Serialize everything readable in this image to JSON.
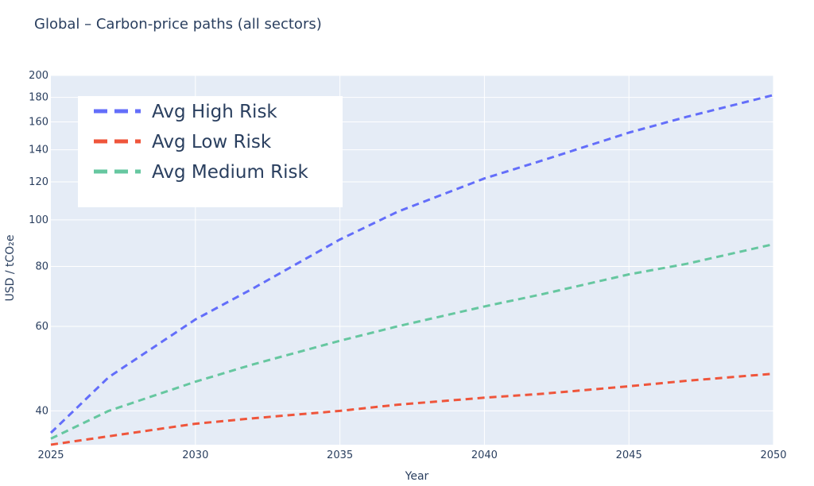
{
  "chart_data": {
    "type": "line",
    "title": "Global – Carbon-price paths (all sectors)",
    "xlabel": "Year",
    "ylabel": "USD / tCO₂e",
    "y_scale": "log",
    "xlim": [
      2025,
      2050
    ],
    "ylim": [
      34,
      200
    ],
    "x_ticks": [
      2025,
      2030,
      2035,
      2040,
      2045,
      2050
    ],
    "y_ticks": [
      40,
      60,
      80,
      100,
      120,
      140,
      160,
      180,
      200
    ],
    "grid": true,
    "legend_position": "top-left",
    "series": [
      {
        "name": "Avg High Risk",
        "color": "#636efa",
        "dash": "dashed",
        "x": [
          2025,
          2027,
          2030,
          2032,
          2035,
          2037,
          2040,
          2042,
          2045,
          2047,
          2050
        ],
        "y": [
          36,
          47,
          62,
          72,
          91,
          104,
          122,
          133,
          152,
          164,
          182
        ]
      },
      {
        "name": "Avg Low Risk",
        "color": "#ef553b",
        "dash": "dashed",
        "x": [
          2025,
          2027,
          2030,
          2032,
          2035,
          2037,
          2040,
          2042,
          2045,
          2047,
          2050
        ],
        "y": [
          34,
          35.4,
          37.6,
          38.6,
          40,
          41.2,
          42.6,
          43.4,
          45,
          46.2,
          47.8
        ]
      },
      {
        "name": "Avg Medium Risk",
        "color": "#66c7a0",
        "dash": "dashed",
        "x": [
          2025,
          2027,
          2030,
          2032,
          2035,
          2037,
          2040,
          2042,
          2045,
          2047,
          2050
        ],
        "y": [
          35,
          40,
          46,
          50,
          56,
          60,
          66,
          70,
          77,
          81,
          89
        ]
      }
    ]
  }
}
